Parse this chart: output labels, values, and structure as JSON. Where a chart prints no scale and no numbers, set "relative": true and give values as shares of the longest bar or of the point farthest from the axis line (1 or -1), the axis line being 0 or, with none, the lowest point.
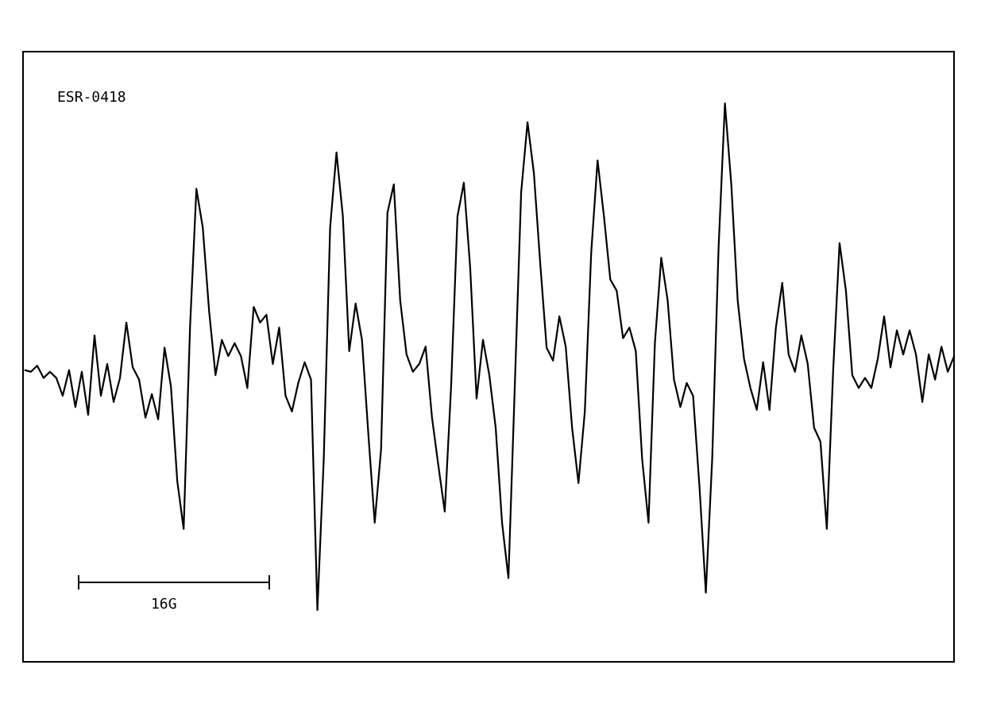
{
  "chart_data": {
    "type": "line",
    "relative": true,
    "annotations": [
      "ESR-0418",
      "16G"
    ],
    "categories": [
      null,
      null,
      null,
      null,
      null,
      null,
      null,
      null,
      null,
      null,
      null,
      null,
      null,
      null,
      null,
      null,
      null,
      null,
      null,
      null,
      null,
      null,
      null,
      null,
      null,
      null,
      null,
      null,
      null,
      null,
      null,
      null,
      null,
      null,
      null,
      null,
      null,
      null,
      null,
      null,
      null,
      null,
      null,
      null,
      null,
      null,
      null,
      null,
      null,
      null,
      null,
      null,
      null,
      null,
      null,
      null,
      null,
      null,
      null,
      null,
      null,
      null,
      null,
      null,
      null,
      null,
      null,
      null,
      null,
      null,
      null,
      null,
      null,
      null,
      null,
      null,
      null,
      null,
      null,
      null,
      null,
      null,
      null,
      null,
      null,
      null,
      null,
      null,
      null,
      null,
      null,
      null,
      null,
      null,
      null,
      null,
      null,
      null,
      null,
      null,
      null,
      null,
      null,
      null,
      null,
      null,
      null,
      null,
      null,
      null,
      null,
      null,
      null,
      null,
      null,
      null,
      null,
      null,
      null,
      null,
      null,
      null,
      null,
      null,
      null,
      null,
      null,
      null,
      null,
      null,
      null,
      null,
      null,
      null,
      null,
      null,
      null,
      null,
      null,
      null,
      null,
      null,
      null,
      null,
      null,
      null,
      null
    ],
    "series": [
      {
        "color": "#000000",
        "values": [
          0.523,
          0.52,
          0.531,
          0.509,
          0.52,
          0.509,
          0.477,
          0.523,
          0.457,
          0.52,
          0.443,
          0.585,
          0.477,
          0.534,
          0.466,
          0.509,
          0.608,
          0.528,
          0.506,
          0.438,
          0.48,
          0.435,
          0.563,
          0.494,
          0.324,
          0.239,
          0.599,
          0.847,
          0.778,
          0.628,
          0.514,
          0.577,
          0.548,
          0.571,
          0.548,
          0.491,
          0.636,
          0.608,
          0.622,
          0.534,
          0.599,
          0.477,
          0.449,
          0.5,
          0.537,
          0.506,
          0.094,
          0.364,
          0.778,
          0.912,
          0.798,
          0.557,
          0.642,
          0.577,
          0.409,
          0.25,
          0.381,
          0.804,
          0.855,
          0.648,
          0.551,
          0.52,
          0.534,
          0.565,
          0.438,
          0.352,
          0.27,
          0.494,
          0.798,
          0.858,
          0.705,
          0.472,
          0.577,
          0.514,
          0.42,
          0.25,
          0.151,
          0.494,
          0.841,
          0.966,
          0.875,
          0.713,
          0.563,
          0.54,
          0.619,
          0.565,
          0.42,
          0.321,
          0.449,
          0.733,
          0.898,
          0.798,
          0.685,
          0.665,
          0.58,
          0.599,
          0.557,
          0.364,
          0.25,
          0.571,
          0.724,
          0.648,
          0.506,
          0.457,
          0.5,
          0.477,
          0.315,
          0.125,
          0.364,
          0.741,
          1,
          0.855,
          0.648,
          0.543,
          0.491,
          0.452,
          0.537,
          0.452,
          0.599,
          0.679,
          0.551,
          0.52,
          0.585,
          0.534,
          0.42,
          0.395,
          0.239,
          0.523,
          0.75,
          0.665,
          0.514,
          0.491,
          0.509,
          0.491,
          0.543,
          0.619,
          0.528,
          0.594,
          0.551,
          0.594,
          0.551,
          0.466,
          0.551,
          0.506,
          0.565,
          0.52,
          0.548
        ]
      }
    ]
  }
}
